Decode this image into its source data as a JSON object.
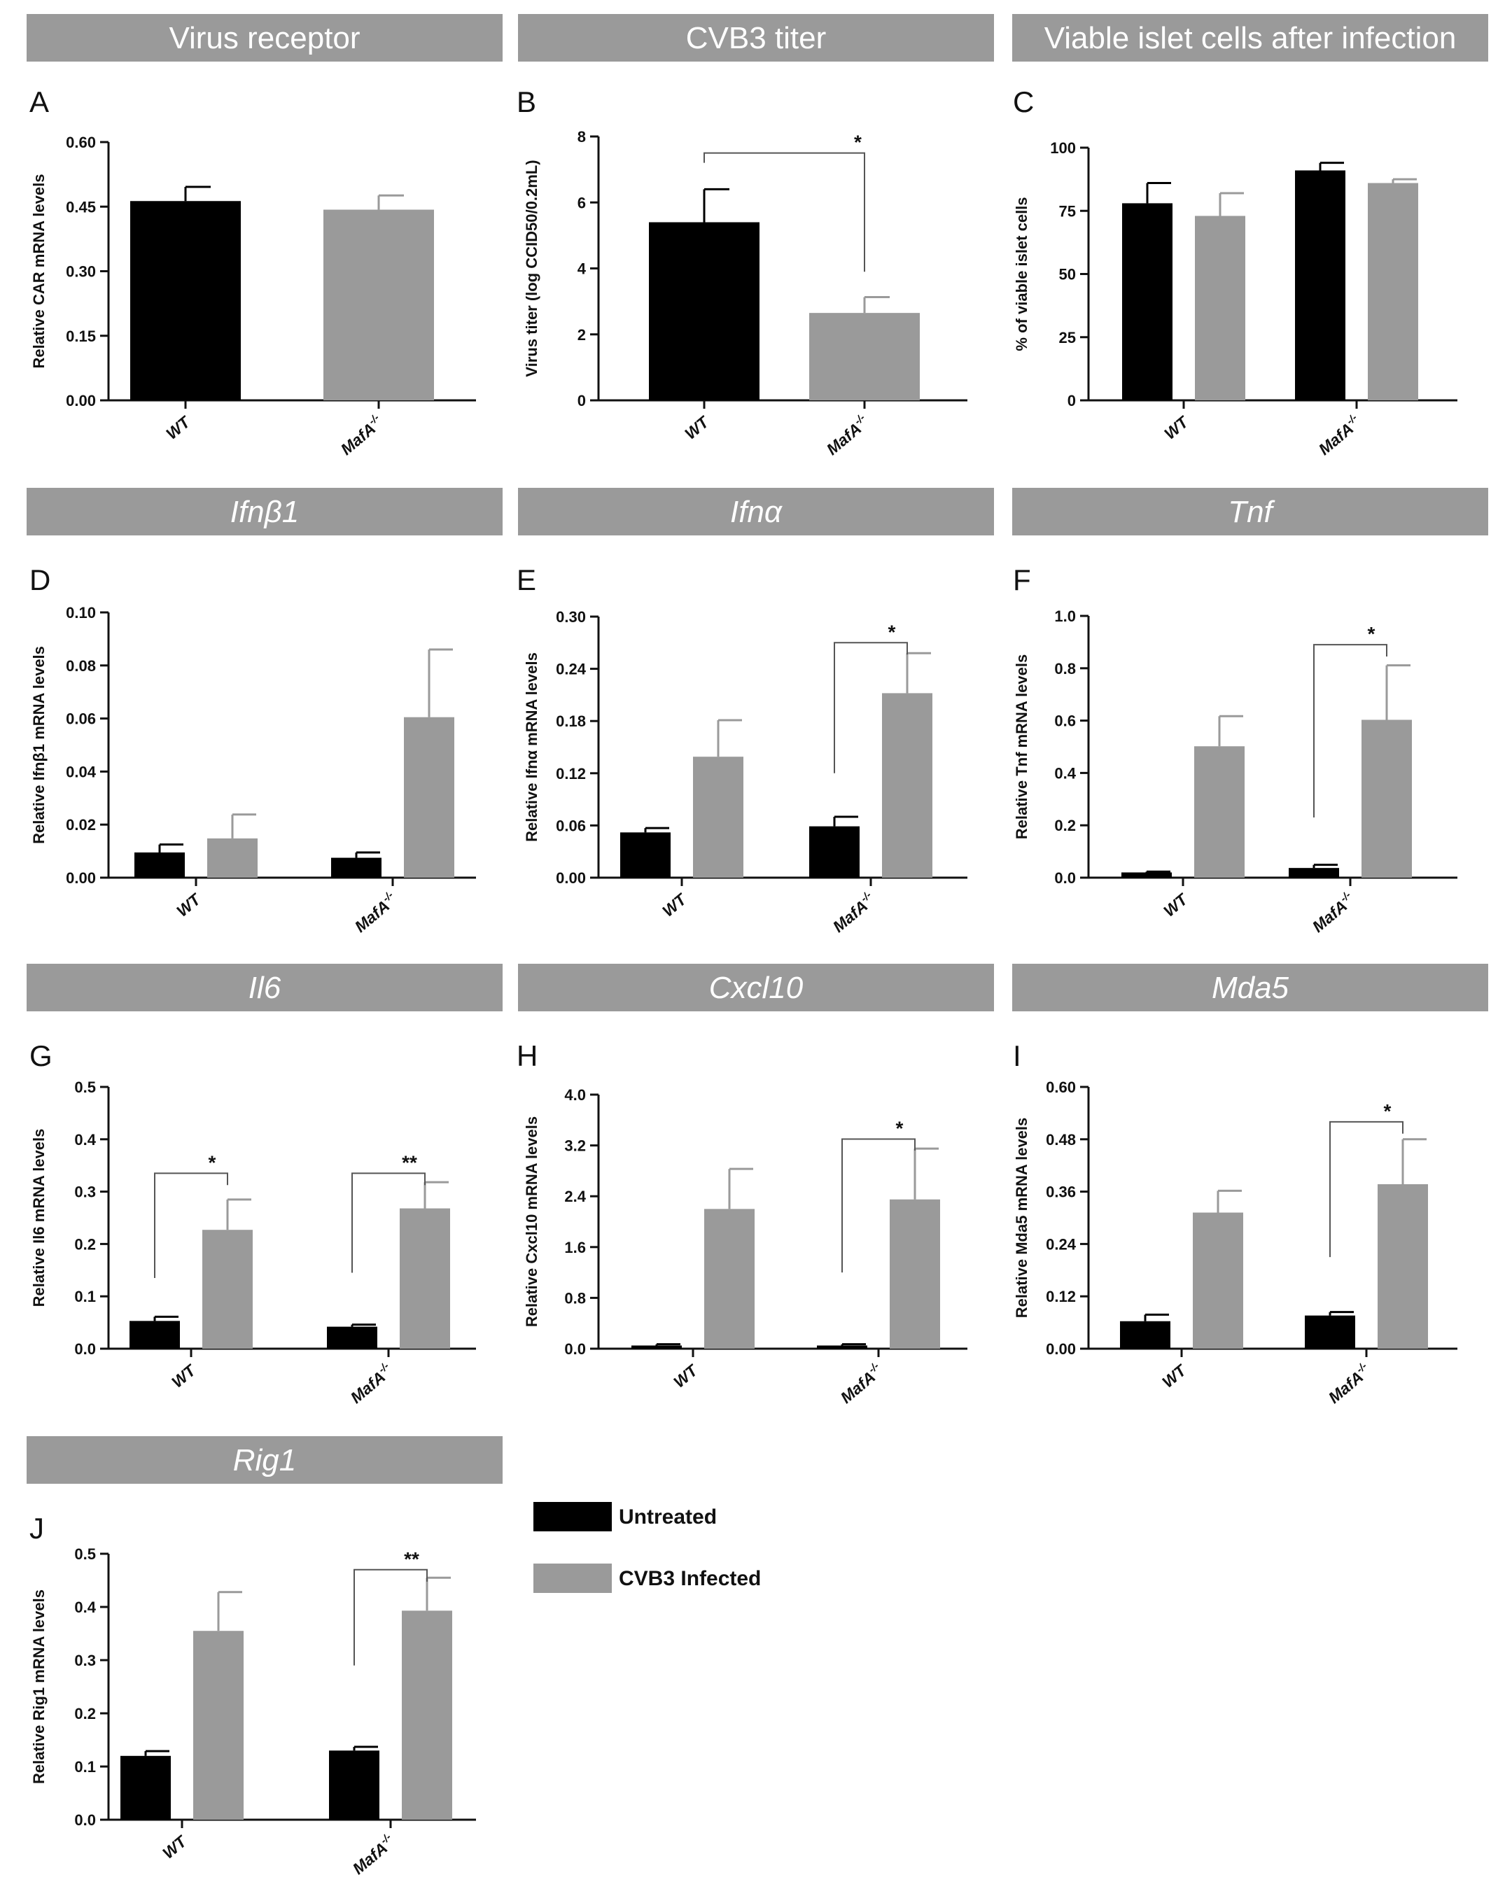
{
  "legend": [
    {
      "label": "Untreated",
      "color": "#000000"
    },
    {
      "label": "CVB3 Infected",
      "color": "#9a9a9a"
    }
  ],
  "colors": {
    "untreated": "#000000",
    "infected": "#9a9a9a",
    "header": "#9a9a9a"
  },
  "chart_data": [
    {
      "id": "A",
      "type": "bar",
      "header": "Virus receptor",
      "header_italic": false,
      "ylabel": "Relative CAR mRNA levels",
      "ylim": [
        0,
        0.6
      ],
      "yticks": [
        "0.00",
        "0.15",
        "0.30",
        "0.45",
        "0.60"
      ],
      "categories": [
        "WT",
        "MafA"
      ],
      "grouped": false,
      "series": [
        {
          "name": "Bars",
          "values": [
            0.463,
            0.443
          ],
          "errors": [
            0.033,
            0.033
          ],
          "colors": [
            "#000000",
            "#9a9a9a"
          ]
        }
      ],
      "annotations": []
    },
    {
      "id": "B",
      "type": "bar",
      "header": "CVB3 titer",
      "header_italic": false,
      "ylabel": "Virus titer (log CCID50/0.2mL)",
      "ylim": [
        0,
        8
      ],
      "yticks": [
        "0",
        "2",
        "4",
        "6",
        "8"
      ],
      "categories": [
        "WT",
        "MafA"
      ],
      "grouped": false,
      "series": [
        {
          "name": "Bars",
          "values": [
            5.4,
            2.65
          ],
          "errors": [
            1.0,
            0.48
          ],
          "colors": [
            "#000000",
            "#9a9a9a"
          ]
        }
      ],
      "annotations": [
        {
          "from": 0,
          "to": 1,
          "label": "*",
          "y": 7.5,
          "drop": 3.9,
          "bracket": "right"
        }
      ]
    },
    {
      "id": "C",
      "type": "bar",
      "header": "Viable islet cells after infection",
      "header_italic": false,
      "ylabel": "% of viable islet cells",
      "ylim": [
        0,
        100
      ],
      "yticks": [
        "0",
        "25",
        "50",
        "75",
        "100"
      ],
      "categories": [
        "WT",
        "MafA"
      ],
      "grouped": true,
      "series": [
        {
          "name": "Untreated",
          "values": [
            78,
            91
          ],
          "errors": [
            8,
            3
          ]
        },
        {
          "name": "CVB3 Infected",
          "values": [
            73,
            86
          ],
          "errors": [
            9,
            1.5
          ]
        }
      ],
      "annotations": []
    },
    {
      "id": "D",
      "type": "bar",
      "header": "Ifnβ1",
      "header_italic": true,
      "ylabel": "Relative Ifnβ1 mRNA levels",
      "ylim": [
        0,
        0.1
      ],
      "yticks": [
        "0.00",
        "0.02",
        "0.04",
        "0.06",
        "0.08",
        "0.10"
      ],
      "categories": [
        "WT",
        "MafA"
      ],
      "grouped": true,
      "series": [
        {
          "name": "Untreated",
          "values": [
            0.0095,
            0.0075
          ],
          "errors": [
            0.003,
            0.002
          ]
        },
        {
          "name": "CVB3 Infected",
          "values": [
            0.0148,
            0.0605
          ],
          "errors": [
            0.009,
            0.0255
          ]
        }
      ],
      "annotations": []
    },
    {
      "id": "E",
      "type": "bar",
      "header": "Ifnα",
      "header_italic": true,
      "ylabel": "Relative Ifnα mRNA levels",
      "ylim": [
        0,
        0.3
      ],
      "yticks": [
        "0.00",
        "0.06",
        "0.12",
        "0.18",
        "0.24",
        "0.30"
      ],
      "categories": [
        "WT",
        "MafA"
      ],
      "grouped": true,
      "series": [
        {
          "name": "Untreated",
          "values": [
            0.052,
            0.059
          ],
          "errors": [
            0.005,
            0.011
          ]
        },
        {
          "name": "CVB3 Infected",
          "values": [
            0.139,
            0.212
          ],
          "errors": [
            0.042,
            0.046
          ]
        }
      ],
      "annotations": [
        {
          "group": 1,
          "label": "*",
          "y": 0.27,
          "drop": 0.12
        }
      ]
    },
    {
      "id": "F",
      "type": "bar",
      "header": "Tnf",
      "header_italic": true,
      "ylabel": "Relative Tnf mRNA levels",
      "ylim": [
        0,
        1.0
      ],
      "yticks": [
        "0.0",
        "0.2",
        "0.4",
        "0.6",
        "0.8",
        "1.0"
      ],
      "categories": [
        "WT",
        "MafA"
      ],
      "grouped": true,
      "series": [
        {
          "name": "Untreated",
          "values": [
            0.02,
            0.037
          ],
          "errors": [
            0.003,
            0.012
          ]
        },
        {
          "name": "CVB3 Infected",
          "values": [
            0.502,
            0.603
          ],
          "errors": [
            0.115,
            0.208
          ]
        }
      ],
      "annotations": [
        {
          "group": 1,
          "label": "*",
          "y": 0.89,
          "drop": 0.23
        }
      ]
    },
    {
      "id": "G",
      "type": "bar",
      "header": "Il6",
      "header_italic": true,
      "ylabel": "Relative Il6 mRNA levels",
      "ylim": [
        0,
        0.5
      ],
      "yticks": [
        "0.0",
        "0.1",
        "0.2",
        "0.3",
        "0.4",
        "0.5"
      ],
      "categories": [
        "WT",
        "MafA"
      ],
      "grouped": true,
      "series": [
        {
          "name": "Untreated",
          "values": [
            0.053,
            0.042
          ],
          "errors": [
            0.008,
            0.004
          ]
        },
        {
          "name": "CVB3 Infected",
          "values": [
            0.227,
            0.268
          ],
          "errors": [
            0.058,
            0.05
          ]
        }
      ],
      "annotations": [
        {
          "group": 0,
          "label": "*",
          "y": 0.335,
          "drop": 0.135
        },
        {
          "group": 1,
          "label": "**",
          "y": 0.335,
          "drop": 0.145
        }
      ]
    },
    {
      "id": "H",
      "type": "bar",
      "header": "Cxcl10",
      "header_italic": true,
      "ylabel": "Relative Cxcl10 mRNA levels",
      "ylim": [
        0,
        4.0
      ],
      "yticks": [
        "0.0",
        "0.8",
        "1.6",
        "2.4",
        "3.2",
        "4.0"
      ],
      "categories": [
        "WT",
        "MafA"
      ],
      "grouped": true,
      "series": [
        {
          "name": "Untreated",
          "values": [
            0.05,
            0.05
          ],
          "errors": [
            0.02,
            0.02
          ]
        },
        {
          "name": "CVB3 Infected",
          "values": [
            2.2,
            2.35
          ],
          "errors": [
            0.63,
            0.8
          ]
        }
      ],
      "annotations": [
        {
          "group": 1,
          "label": "*",
          "y": 3.3,
          "drop": 1.2
        }
      ]
    },
    {
      "id": "I",
      "type": "bar",
      "header": "Mda5",
      "header_italic": true,
      "ylabel": "Relative Mda5 mRNA levels",
      "ylim": [
        0,
        0.6
      ],
      "yticks": [
        "0.00",
        "0.12",
        "0.24",
        "0.36",
        "0.48",
        "0.60"
      ],
      "categories": [
        "WT",
        "MafA"
      ],
      "grouped": true,
      "series": [
        {
          "name": "Untreated",
          "values": [
            0.063,
            0.076
          ],
          "errors": [
            0.015,
            0.008
          ]
        },
        {
          "name": "CVB3 Infected",
          "values": [
            0.312,
            0.377
          ],
          "errors": [
            0.05,
            0.103
          ]
        }
      ],
      "annotations": [
        {
          "group": 1,
          "label": "*",
          "y": 0.52,
          "drop": 0.21
        }
      ]
    },
    {
      "id": "J",
      "type": "bar",
      "header": "Rig1",
      "header_italic": true,
      "ylabel": "Relative Rig1 mRNA levels",
      "ylim": [
        0,
        0.5
      ],
      "yticks": [
        "0.0",
        "0.1",
        "0.2",
        "0.3",
        "0.4",
        "0.5"
      ],
      "categories": [
        "WT",
        "MafA"
      ],
      "grouped": true,
      "series": [
        {
          "name": "Untreated",
          "values": [
            0.12,
            0.13
          ],
          "errors": [
            0.009,
            0.007
          ]
        },
        {
          "name": "CVB3 Infected",
          "values": [
            0.355,
            0.393
          ],
          "errors": [
            0.073,
            0.062
          ]
        }
      ],
      "annotations": [
        {
          "group": 1,
          "label": "**",
          "y": 0.47,
          "drop": 0.29
        }
      ]
    }
  ],
  "superscript": "-/-"
}
